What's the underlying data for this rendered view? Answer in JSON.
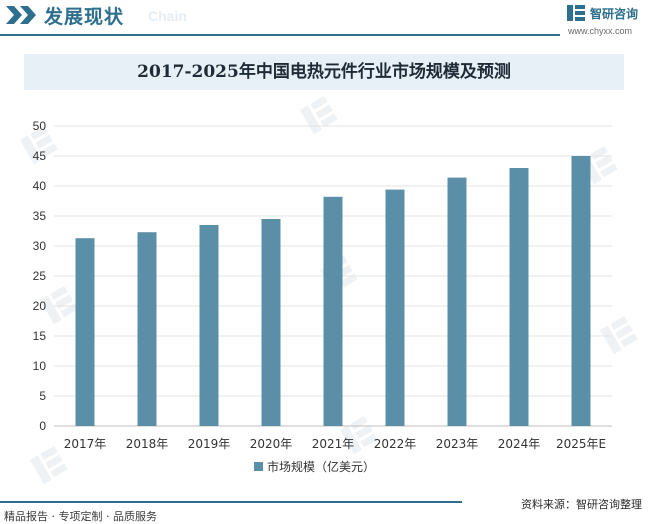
{
  "header": {
    "title": "发展现状",
    "subtitle": "Chain"
  },
  "brand": {
    "name": "智研咨询",
    "url": "www.chyxx.com",
    "logo_icon": "zhiyan-logo-icon"
  },
  "footer": {
    "left": "精品报告 · 专项定制 · 品质服务",
    "source": "资料来源：智研咨询整理"
  },
  "colors": {
    "accent": "#2e6f8e",
    "bar": "#5b8fa8",
    "title_band": "#e6f0f6"
  },
  "chart_data": {
    "type": "bar",
    "title": "2017-2025年中国电热元件行业市场规模及预测",
    "categories": [
      "2017年",
      "2018年",
      "2019年",
      "2020年",
      "2021年",
      "2022年",
      "2023年",
      "2024年",
      "2025年E"
    ],
    "series": [
      {
        "name": "市场规模（亿美元）",
        "values": [
          31.3,
          32.3,
          33.5,
          34.5,
          38.2,
          39.4,
          41.4,
          43.0,
          45.0
        ]
      }
    ],
    "ylim": [
      0,
      50
    ],
    "yticks": [
      "0",
      "5",
      "10",
      "15",
      "20",
      "25",
      "30",
      "35",
      "40",
      "45",
      "50"
    ],
    "grid": true,
    "legend": "bottom"
  }
}
